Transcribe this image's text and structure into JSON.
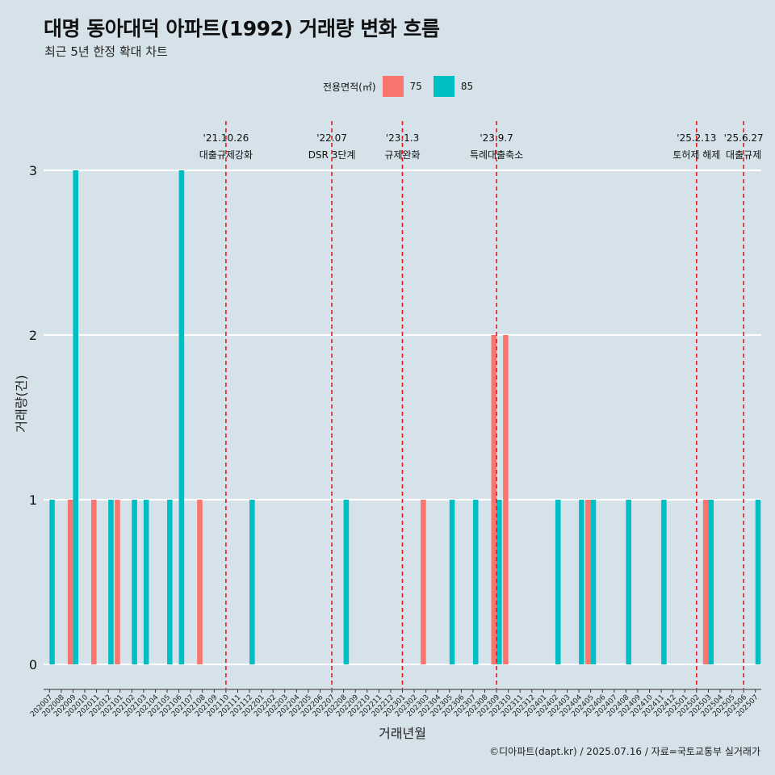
{
  "title": "대명 동아대덕 아파트(1992) 거래량 변화 흐름",
  "subtitle": "최근 5년 한정 확대 차트",
  "caption": "©디아파트(dapt.kr) / 2025.07.16 / 자료=국토교통부 실거래가",
  "legend": {
    "title": "전용면적(㎡)",
    "items": [
      {
        "label": "75",
        "color": "#f8766d"
      },
      {
        "label": "85",
        "color": "#00bfc4"
      }
    ]
  },
  "chart_data": {
    "type": "bar",
    "xlabel": "거래년월",
    "ylabel": "거래량(건)",
    "ylim": [
      0,
      3
    ],
    "yticks": [
      0,
      1,
      2,
      3
    ],
    "grid": true,
    "legend_position": "top",
    "categories": [
      "202007",
      "202008",
      "202009",
      "202010",
      "202011",
      "202012",
      "202101",
      "202102",
      "202103",
      "202104",
      "202105",
      "202106",
      "202107",
      "202108",
      "202109",
      "202110",
      "202111",
      "202112",
      "202201",
      "202202",
      "202203",
      "202204",
      "202205",
      "202206",
      "202207",
      "202208",
      "202209",
      "202210",
      "202211",
      "202212",
      "202301",
      "202302",
      "202303",
      "202304",
      "202305",
      "202306",
      "202307",
      "202308",
      "202309",
      "202310",
      "202311",
      "202312",
      "202401",
      "202402",
      "202403",
      "202404",
      "202405",
      "202406",
      "202407",
      "202408",
      "202409",
      "202410",
      "202411",
      "202412",
      "202501",
      "202502",
      "202503",
      "202504",
      "202505",
      "202506",
      "202507"
    ],
    "series": [
      {
        "name": "75",
        "color": "#f8766d",
        "values": [
          0,
          0,
          1,
          0,
          1,
          0,
          1,
          0,
          0,
          0,
          0,
          0,
          0,
          1,
          0,
          0,
          0,
          0,
          0,
          0,
          0,
          0,
          0,
          0,
          0,
          0,
          0,
          0,
          0,
          0,
          0,
          0,
          1,
          0,
          0,
          0,
          0,
          0,
          2,
          2,
          0,
          0,
          0,
          0,
          0,
          0,
          1,
          0,
          0,
          0,
          0,
          0,
          0,
          0,
          0,
          0,
          1,
          0,
          0,
          0,
          0
        ]
      },
      {
        "name": "85",
        "color": "#00bfc4",
        "values": [
          1,
          0,
          3,
          0,
          0,
          1,
          0,
          1,
          1,
          0,
          1,
          3,
          0,
          0,
          0,
          0,
          0,
          1,
          0,
          0,
          0,
          0,
          0,
          0,
          0,
          1,
          0,
          0,
          0,
          0,
          0,
          0,
          0,
          0,
          1,
          0,
          1,
          0,
          1,
          0,
          0,
          0,
          0,
          1,
          0,
          1,
          1,
          0,
          0,
          1,
          0,
          0,
          1,
          0,
          0,
          0,
          1,
          0,
          0,
          0,
          1
        ]
      }
    ],
    "events": [
      {
        "month": "202110",
        "date": "'21.10.26",
        "label": "대출규제강화"
      },
      {
        "month": "202207",
        "date": "'22.07",
        "label": "DSR 3단계"
      },
      {
        "month": "202301",
        "date": "'23.1.3",
        "label": "규제완화"
      },
      {
        "month": "202309",
        "date": "'23.9.7",
        "label": "특례대출축소"
      },
      {
        "month": "202502",
        "date": "'25.2.13",
        "label": "토허제 해제"
      },
      {
        "month": "202506",
        "date": "'25.6.27",
        "label": "대출규제"
      }
    ]
  }
}
